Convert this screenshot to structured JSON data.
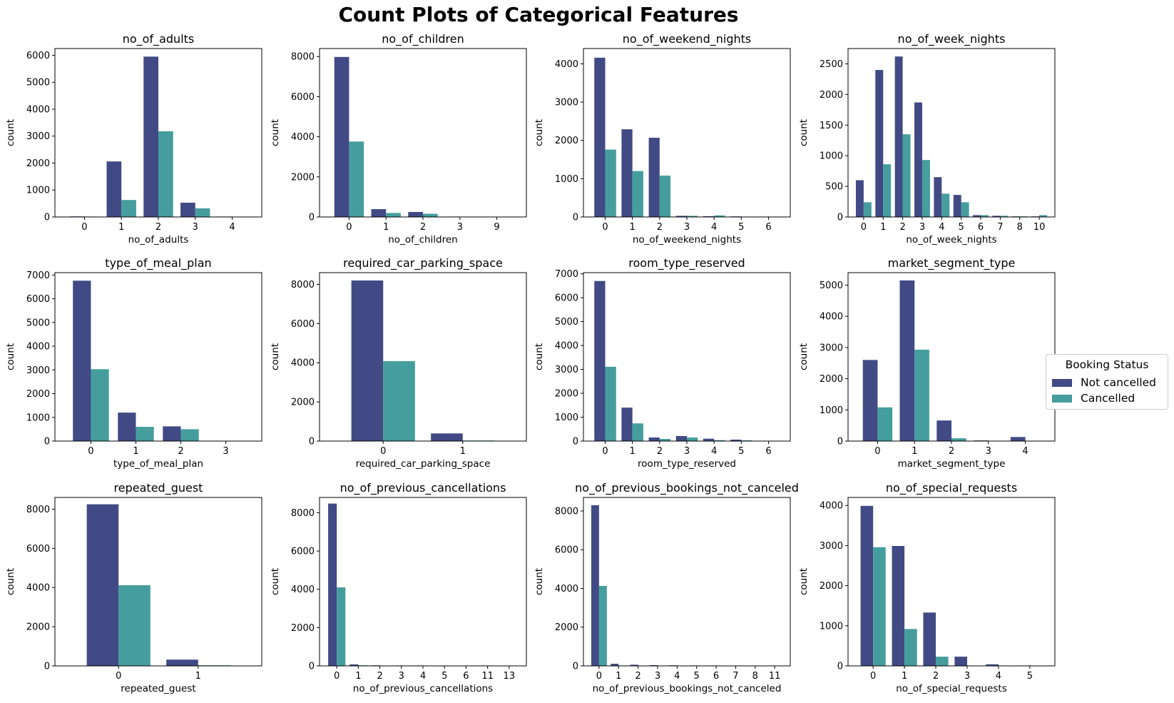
{
  "title": "Count Plots of Categorical Features",
  "colors": {
    "not_cancelled": "#414a84",
    "cancelled": "#459e9d"
  },
  "legend": {
    "title": "Booking Status",
    "placement": "center-right",
    "labels": [
      "Not cancelled",
      "Cancelled"
    ]
  },
  "chart_data": [
    {
      "type": "bar",
      "title": "no_of_adults",
      "xlabel": "no_of_adults",
      "ylabel": "count",
      "categories": [
        "0",
        "1",
        "2",
        "3",
        "4"
      ],
      "ylim": [
        0,
        6250
      ],
      "yticks": [
        0,
        1000,
        2000,
        3000,
        4000,
        5000,
        6000
      ],
      "series": [
        {
          "name": "Not cancelled",
          "values": [
            20,
            2060,
            5950,
            530,
            15
          ]
        },
        {
          "name": "Cancelled",
          "values": [
            15,
            630,
            3180,
            320,
            5
          ]
        }
      ]
    },
    {
      "type": "bar",
      "title": "no_of_children",
      "xlabel": "no_of_children",
      "ylabel": "count",
      "categories": [
        "0",
        "1",
        "2",
        "3",
        "9"
      ],
      "ylim": [
        0,
        8400
      ],
      "yticks": [
        0,
        2000,
        4000,
        6000,
        8000
      ],
      "series": [
        {
          "name": "Not cancelled",
          "values": [
            7980,
            390,
            250,
            20,
            5
          ]
        },
        {
          "name": "Cancelled",
          "values": [
            3760,
            200,
            160,
            10,
            0
          ]
        }
      ]
    },
    {
      "type": "bar",
      "title": "no_of_weekend_nights",
      "xlabel": "no_of_weekend_nights",
      "ylabel": "count",
      "categories": [
        "0",
        "1",
        "2",
        "3",
        "4",
        "5",
        "6"
      ],
      "ylim": [
        0,
        4400
      ],
      "yticks": [
        0,
        1000,
        2000,
        3000,
        4000
      ],
      "series": [
        {
          "name": "Not cancelled",
          "values": [
            4160,
            2290,
            2070,
            30,
            20,
            15,
            10
          ]
        },
        {
          "name": "Cancelled",
          "values": [
            1760,
            1200,
            1080,
            30,
            40,
            10,
            10
          ]
        }
      ]
    },
    {
      "type": "bar",
      "title": "no_of_week_nights",
      "xlabel": "no_of_week_nights",
      "ylabel": "count",
      "categories": [
        "0",
        "1",
        "2",
        "3",
        "4",
        "5",
        "6",
        "7",
        "8",
        "10"
      ],
      "ylim": [
        0,
        2750
      ],
      "yticks": [
        0,
        500,
        1000,
        1500,
        2000,
        2500
      ],
      "series": [
        {
          "name": "Not cancelled",
          "values": [
            600,
            2400,
            2620,
            1870,
            650,
            360,
            30,
            20,
            10,
            10
          ]
        },
        {
          "name": "Cancelled",
          "values": [
            240,
            860,
            1350,
            930,
            380,
            240,
            30,
            20,
            10,
            30
          ]
        }
      ]
    },
    {
      "type": "bar",
      "title": "type_of_meal_plan",
      "xlabel": "type_of_meal_plan",
      "ylabel": "count",
      "categories": [
        "0",
        "1",
        "2",
        "3"
      ],
      "ylim": [
        0,
        7100
      ],
      "yticks": [
        0,
        1000,
        2000,
        3000,
        4000,
        5000,
        6000,
        7000
      ],
      "series": [
        {
          "name": "Not cancelled",
          "values": [
            6760,
            1200,
            620,
            5
          ]
        },
        {
          "name": "Cancelled",
          "values": [
            3030,
            600,
            500,
            0
          ]
        }
      ]
    },
    {
      "type": "bar",
      "title": "required_car_parking_space",
      "xlabel": "required_car_parking_space",
      "ylabel": "count",
      "categories": [
        "0",
        "1"
      ],
      "ylim": [
        0,
        8600
      ],
      "yticks": [
        0,
        2000,
        4000,
        6000,
        8000
      ],
      "series": [
        {
          "name": "Not cancelled",
          "values": [
            8200,
            390
          ]
        },
        {
          "name": "Cancelled",
          "values": [
            4080,
            30
          ]
        }
      ]
    },
    {
      "type": "bar",
      "title": "room_type_reserved",
      "xlabel": "room_type_reserved",
      "ylabel": "count",
      "categories": [
        "0",
        "1",
        "2",
        "3",
        "4",
        "5",
        "6"
      ],
      "ylim": [
        0,
        7050
      ],
      "yticks": [
        0,
        1000,
        2000,
        3000,
        4000,
        5000,
        6000,
        7000
      ],
      "series": [
        {
          "name": "Not cancelled",
          "values": [
            6700,
            1400,
            150,
            210,
            100,
            60,
            10
          ]
        },
        {
          "name": "Cancelled",
          "values": [
            3110,
            740,
            90,
            150,
            40,
            30,
            10
          ]
        }
      ]
    },
    {
      "type": "bar",
      "title": "market_segment_type",
      "xlabel": "market_segment_type",
      "ylabel": "count",
      "categories": [
        "0",
        "1",
        "2",
        "3",
        "4"
      ],
      "ylim": [
        0,
        5400
      ],
      "yticks": [
        0,
        1000,
        2000,
        3000,
        4000,
        5000
      ],
      "series": [
        {
          "name": "Not cancelled",
          "values": [
            2600,
            5150,
            660,
            20,
            130
          ]
        },
        {
          "name": "Cancelled",
          "values": [
            1080,
            2930,
            90,
            10,
            0
          ]
        }
      ]
    },
    {
      "type": "bar",
      "title": "repeated_guest",
      "xlabel": "repeated_guest",
      "ylabel": "count",
      "categories": [
        "0",
        "1"
      ],
      "ylim": [
        0,
        8600
      ],
      "yticks": [
        0,
        2000,
        4000,
        6000,
        8000
      ],
      "series": [
        {
          "name": "Not cancelled",
          "values": [
            8250,
            320
          ]
        },
        {
          "name": "Cancelled",
          "values": [
            4120,
            30
          ]
        }
      ]
    },
    {
      "type": "bar",
      "title": "no_of_previous_cancellations",
      "xlabel": "no_of_previous_cancellations",
      "ylabel": "count",
      "categories": [
        "0",
        "1",
        "2",
        "3",
        "4",
        "5",
        "6",
        "11",
        "13"
      ],
      "ylim": [
        0,
        8800
      ],
      "yticks": [
        0,
        2000,
        4000,
        6000,
        8000
      ],
      "series": [
        {
          "name": "Not cancelled",
          "values": [
            8480,
            80,
            30,
            20,
            20,
            10,
            5,
            20,
            5
          ]
        },
        {
          "name": "Cancelled",
          "values": [
            4100,
            30,
            10,
            5,
            10,
            5,
            5,
            10,
            5
          ]
        }
      ]
    },
    {
      "type": "bar",
      "title": "no_of_previous_bookings_not_canceled",
      "xlabel": "no_of_previous_bookings_not_canceled",
      "ylabel": "count",
      "categories": [
        "0",
        "1",
        "2",
        "3",
        "4",
        "5",
        "6",
        "7",
        "8",
        "11"
      ],
      "ylim": [
        0,
        8700
      ],
      "yticks": [
        0,
        2000,
        4000,
        6000,
        8000
      ],
      "series": [
        {
          "name": "Not cancelled",
          "values": [
            8300,
            110,
            60,
            40,
            30,
            20,
            20,
            15,
            10,
            10
          ]
        },
        {
          "name": "Cancelled",
          "values": [
            4130,
            20,
            10,
            10,
            5,
            5,
            5,
            5,
            5,
            5
          ]
        }
      ]
    },
    {
      "type": "bar",
      "title": "no_of_special_requests",
      "xlabel": "no_of_special_requests",
      "ylabel": "count",
      "categories": [
        "0",
        "1",
        "2",
        "3",
        "4",
        "5"
      ],
      "ylim": [
        0,
        4200
      ],
      "yticks": [
        0,
        1000,
        2000,
        3000,
        4000
      ],
      "series": [
        {
          "name": "Not cancelled",
          "values": [
            3990,
            2990,
            1330,
            230,
            40,
            10
          ]
        },
        {
          "name": "Cancelled",
          "values": [
            2960,
            920,
            230,
            0,
            0,
            0
          ]
        }
      ]
    }
  ]
}
